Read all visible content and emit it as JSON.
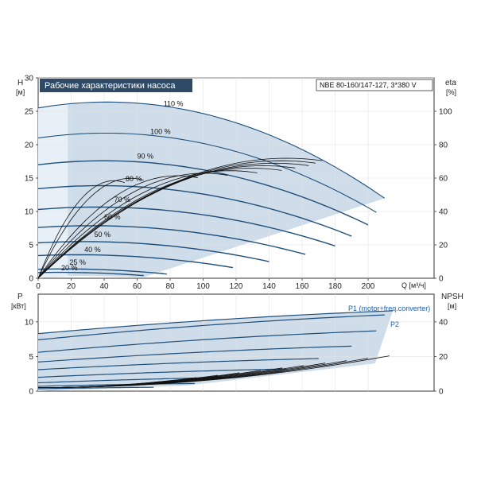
{
  "chart_data": [
    {
      "type": "line",
      "title": "Рабочие характеристики насоса",
      "model": "NBE 80-160/147-127, 3*380 V",
      "ylabel_left": "H",
      "ylabel_left_unit": "[м]",
      "ylabel_right": "eta",
      "ylabel_right_unit": "[%]",
      "xlabel": "Q [м³/ч]",
      "xlim": [
        0,
        240
      ],
      "ylim": [
        0,
        30
      ],
      "ylim_right": [
        0,
        120
      ],
      "x_ticks": [
        0,
        20,
        40,
        60,
        80,
        100,
        120,
        140,
        160,
        180,
        200
      ],
      "y_ticks": [
        0,
        5,
        10,
        15,
        20,
        25,
        30
      ],
      "y_right_ticks": [
        0,
        20,
        40,
        60,
        80,
        100
      ],
      "speed_labels": [
        {
          "text": "110 %",
          "q": 76,
          "h": 25.8
        },
        {
          "text": "100 %",
          "q": 68,
          "h": 21.6
        },
        {
          "text": "90 %",
          "q": 60,
          "h": 17.9
        },
        {
          "text": "80 %",
          "q": 53,
          "h": 14.5
        },
        {
          "text": "70 %",
          "q": 46,
          "h": 11.4
        },
        {
          "text": "60 %",
          "q": 40,
          "h": 8.8
        },
        {
          "text": "50 %",
          "q": 34,
          "h": 6.2
        },
        {
          "text": "40 %",
          "q": 28,
          "h": 3.9
        },
        {
          "text": "25 %",
          "q": 19,
          "h": 2.0
        },
        {
          "text": "20 %",
          "q": 14,
          "h": 1.2
        }
      ],
      "head_curves": [
        {
          "speed": 1.1,
          "h0": 25.5,
          "qmax": 210
        },
        {
          "speed": 1.0,
          "h0": 21.0,
          "qmax": 205
        },
        {
          "speed": 0.9,
          "h0": 17.0,
          "qmax": 200
        },
        {
          "speed": 0.8,
          "h0": 13.4,
          "qmax": 190
        },
        {
          "speed": 0.7,
          "h0": 10.3,
          "qmax": 180
        },
        {
          "speed": 0.6,
          "h0": 7.6,
          "qmax": 162
        },
        {
          "speed": 0.5,
          "h0": 5.3,
          "qmax": 140
        },
        {
          "speed": 0.4,
          "h0": 3.4,
          "qmax": 118
        },
        {
          "speed": 0.25,
          "h0": 1.35,
          "qmax": 78
        },
        {
          "speed": 0.2,
          "h0": 0.85,
          "qmax": 64
        }
      ]
    },
    {
      "type": "line",
      "ylabel_left": "P",
      "ylabel_left_unit": "[кВт]",
      "ylabel_right": "NPSH",
      "ylabel_right_unit": "[м]",
      "xlim": [
        0,
        240
      ],
      "ylim": [
        0,
        14
      ],
      "ylim_right": [
        0,
        56
      ],
      "y_ticks": [
        0,
        5,
        10
      ],
      "y_right_ticks": [
        0,
        20,
        40
      ],
      "legend": [
        "P1 (motor+freq.converter)",
        "P2"
      ],
      "power_curves": [
        {
          "p0": 8.3,
          "p1": 11.6,
          "qmax": 215
        },
        {
          "p0": 7.4,
          "p1": 11.0,
          "qmax": 210
        },
        {
          "p0": 5.6,
          "p1": 8.7,
          "qmax": 205
        },
        {
          "p0": 4.2,
          "p1": 6.5,
          "qmax": 190
        },
        {
          "p0": 3.1,
          "p1": 4.7,
          "qmax": 170
        },
        {
          "p0": 2.0,
          "p1": 3.2,
          "qmax": 150
        },
        {
          "p0": 1.2,
          "p1": 2.0,
          "qmax": 120
        },
        {
          "p0": 0.7,
          "p1": 1.1,
          "qmax": 95
        },
        {
          "p0": 0.35,
          "p1": 0.55,
          "qmax": 70
        }
      ]
    }
  ]
}
